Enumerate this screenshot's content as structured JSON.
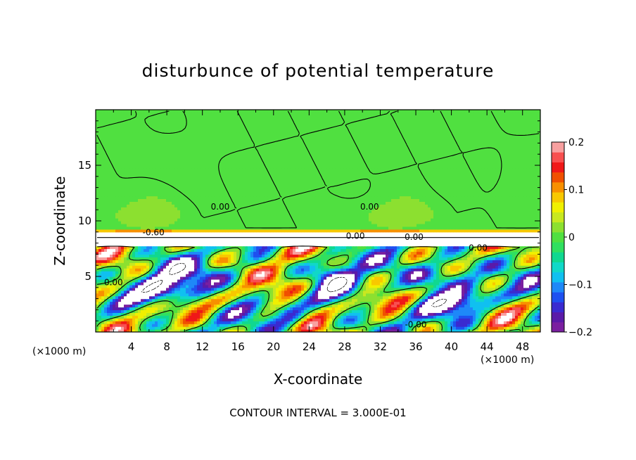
{
  "chart_data": {
    "type": "heatmap",
    "title": "disturbunce of potential temperature",
    "xlabel": "X-coordinate",
    "ylabel": "Z-coordinate",
    "x_unit": "(×1000 m)",
    "z_unit": "(×1000 m)",
    "xlim": [
      0,
      50
    ],
    "ylim": [
      0,
      20
    ],
    "x_ticks": [
      4,
      8,
      12,
      16,
      20,
      24,
      28,
      32,
      36,
      40,
      44,
      48
    ],
    "y_ticks": [
      5,
      10,
      15
    ],
    "colorbar": {
      "range": [
        -0.2,
        0.2
      ],
      "ticks": [
        {
          "value": 0.2,
          "label": "0.2"
        },
        {
          "value": 0.1,
          "label": "0.1"
        },
        {
          "value": 0.0,
          "label": "0"
        },
        {
          "value": -0.1,
          "label": "−0.1"
        },
        {
          "value": -0.2,
          "label": "−0.2"
        }
      ],
      "colors": [
        "#7a1fa0",
        "#5a1aa8",
        "#3a2ad0",
        "#1e50f0",
        "#1e88f8",
        "#10c0f0",
        "#10d8c8",
        "#10d890",
        "#30e060",
        "#50e040",
        "#8ce030",
        "#c8e820",
        "#f0f000",
        "#f8c800",
        "#f89000",
        "#f05000",
        "#f01818",
        "#f85050",
        "#f8a0a0"
      ]
    },
    "contour_labels": [
      {
        "text": "0.00",
        "x": 29.2,
        "y": 8.4
      },
      {
        "text": "0.00",
        "x": 35.8,
        "y": 8.3
      },
      {
        "text": "-0.00",
        "x": 36.0,
        "y": 0.4
      },
      {
        "text": "0.00",
        "x": 43.0,
        "y": 7.3
      },
      {
        "text": "-0.60",
        "x": 6.5,
        "y": 8.7
      },
      {
        "text": "0.00",
        "x": 30.8,
        "y": 11.0
      },
      {
        "text": "0.00",
        "x": 14.0,
        "y": 11.0
      },
      {
        "text": "0.00",
        "x": 2.0,
        "y": 4.2
      }
    ],
    "footer": "CONTOUR INTERVAL = 3.000E-01"
  }
}
